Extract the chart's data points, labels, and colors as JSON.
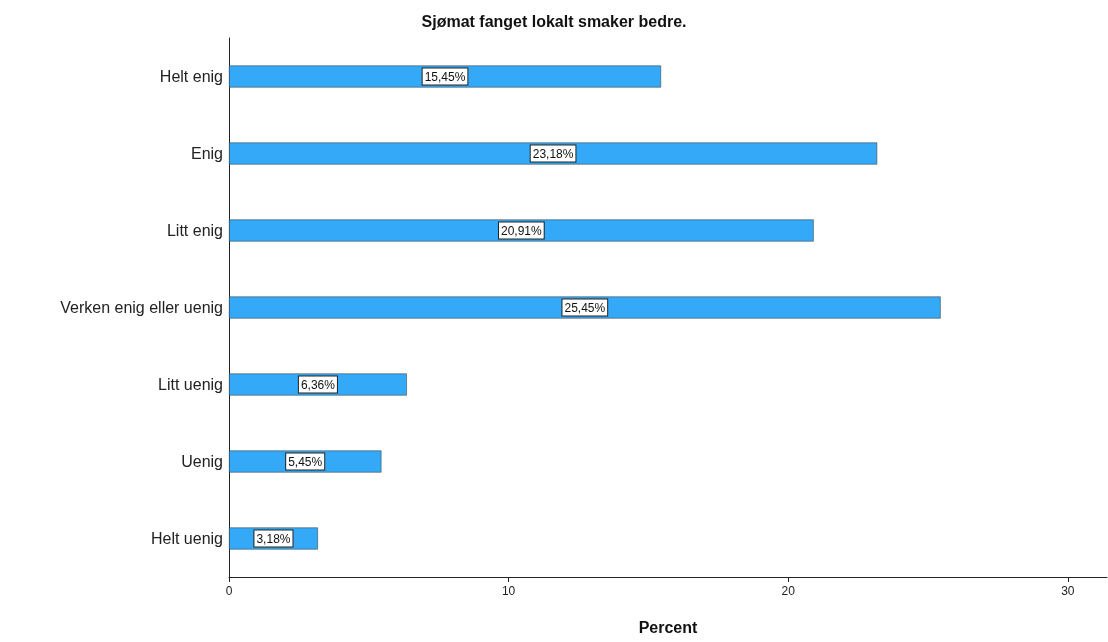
{
  "chart_data": {
    "type": "bar",
    "orientation": "horizontal",
    "title": "Sjømat fanget lokalt smaker bedre.",
    "xlabel": "Percent",
    "categories": [
      "Helt enig",
      "Enig",
      "Litt enig",
      "Verken enig eller uenig",
      "Litt uenig",
      "Uenig",
      "Helt uenig"
    ],
    "values": [
      15.45,
      23.18,
      20.91,
      25.45,
      6.36,
      5.45,
      3.18
    ],
    "value_labels": [
      "15,45%",
      "23,18%",
      "20,91%",
      "25,45%",
      "6,36%",
      "5,45%",
      "3,18%"
    ],
    "color": "#33a9f7",
    "xlim": [
      0,
      31.4
    ],
    "xticks": [
      0,
      10,
      20,
      30
    ],
    "grid": false
  }
}
